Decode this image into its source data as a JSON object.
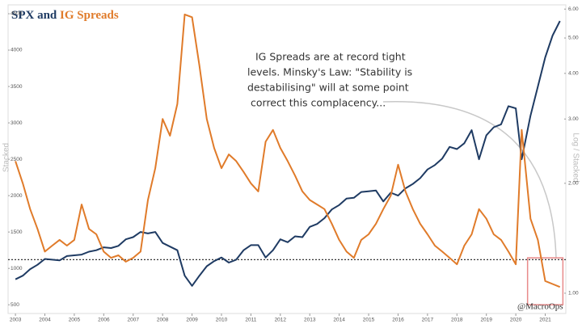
{
  "chart_data": {
    "type": "line",
    "series": [
      {
        "name": "SPX",
        "color": "#1f3b63",
        "axis": "y",
        "values": [
          850,
          900,
          990,
          1050,
          1130,
          1120,
          1110,
          1170,
          1180,
          1190,
          1230,
          1250,
          1290,
          1280,
          1310,
          1400,
          1430,
          1500,
          1480,
          1500,
          1350,
          1300,
          1250,
          900,
          760,
          900,
          1030,
          1100,
          1150,
          1080,
          1120,
          1250,
          1320,
          1320,
          1150,
          1250,
          1400,
          1360,
          1440,
          1430,
          1570,
          1610,
          1690,
          1810,
          1870,
          1960,
          1970,
          2050,
          2060,
          2070,
          1920,
          2040,
          2000,
          2100,
          2160,
          2240,
          2360,
          2420,
          2510,
          2670,
          2640,
          2720,
          2900,
          2500,
          2830,
          2940,
          2980,
          3230,
          3200,
          2500,
          3100,
          3500,
          3900,
          4200,
          4400
        ]
      },
      {
        "name": "IG Spreads",
        "color": "#e07b2a",
        "axis": "y2",
        "values": [
          2.3,
          2.0,
          1.7,
          1.5,
          1.3,
          1.35,
          1.4,
          1.35,
          1.4,
          1.75,
          1.5,
          1.45,
          1.3,
          1.25,
          1.27,
          1.22,
          1.25,
          1.3,
          1.8,
          2.2,
          3.0,
          2.7,
          3.3,
          5.8,
          5.7,
          4.2,
          3.0,
          2.5,
          2.2,
          2.4,
          2.3,
          2.15,
          2.0,
          1.9,
          2.6,
          2.8,
          2.5,
          2.3,
          2.1,
          1.9,
          1.8,
          1.75,
          1.7,
          1.55,
          1.4,
          1.3,
          1.25,
          1.4,
          1.45,
          1.55,
          1.7,
          1.85,
          2.25,
          1.9,
          1.7,
          1.55,
          1.45,
          1.35,
          1.3,
          1.25,
          1.2,
          1.35,
          1.45,
          1.7,
          1.6,
          1.45,
          1.4,
          1.3,
          1.2,
          2.8,
          1.6,
          1.4,
          1.08,
          1.06,
          1.04
        ]
      }
    ],
    "x": [
      2003,
      2003.25,
      2003.5,
      2003.75,
      2004,
      2004.25,
      2004.5,
      2004.75,
      2005,
      2005.25,
      2005.5,
      2005.75,
      2006,
      2006.25,
      2006.5,
      2006.75,
      2007,
      2007.25,
      2007.5,
      2007.75,
      2008,
      2008.25,
      2008.5,
      2008.75,
      2009,
      2009.25,
      2009.5,
      2009.75,
      2010,
      2010.25,
      2010.5,
      2010.75,
      2011,
      2011.25,
      2011.5,
      2011.75,
      2012,
      2012.25,
      2012.5,
      2012.75,
      2013,
      2013.25,
      2013.5,
      2013.75,
      2014,
      2014.25,
      2014.5,
      2014.75,
      2015,
      2015.25,
      2015.5,
      2015.75,
      2016,
      2016.25,
      2016.5,
      2016.75,
      2017,
      2017.25,
      2017.5,
      2017.75,
      2018,
      2018.25,
      2018.5,
      2018.75,
      2019,
      2019.25,
      2019.5,
      2019.75,
      2020,
      2020.2,
      2020.5,
      2020.75,
      2021,
      2021.25,
      2021.5
    ],
    "title_connector": "and",
    "ylabel": "Stacked",
    "y2label": "Log / Stacked",
    "y2log": true,
    "xlim": [
      2002.75,
      2021.7
    ],
    "xticks": [
      2003,
      2004,
      2005,
      2006,
      2007,
      2008,
      2009,
      2010,
      2011,
      2012,
      2013,
      2014,
      2015,
      2016,
      2017,
      2018,
      2019,
      2020,
      2021
    ],
    "ylim": [
      380,
      4600
    ],
    "yticks": [
      500,
      1000,
      1500,
      2000,
      2500,
      3000,
      3500,
      4000,
      4500
    ],
    "y2lim": [
      0.88,
      6.1
    ],
    "y2ticks": [
      {
        "value": 1,
        "label": "1.00"
      },
      {
        "value": 2,
        "label": "2.00"
      },
      {
        "value": 3,
        "label": "3.00"
      },
      {
        "value": 4,
        "label": "4.00"
      },
      {
        "value": 5,
        "label": "5.00"
      },
      {
        "value": 6,
        "label": "6.00"
      }
    ],
    "reference_line": {
      "value": 1120,
      "axis": "y"
    },
    "highlight_box": {
      "x": [
        2020.4,
        2021.6
      ],
      "y2": [
        0.93,
        1.25
      ],
      "color": "#e88a8a"
    },
    "annotation": [
      "IG Spreads are at record tight",
      "levels. Minsky's Law: \"Stability is",
      "destabilising\" will at some point",
      "correct this complacency..."
    ],
    "watermark": "@MacroOps"
  }
}
